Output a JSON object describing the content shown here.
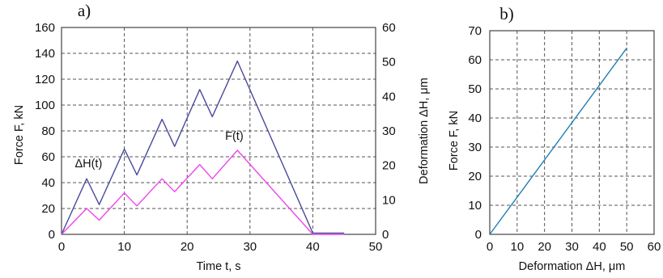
{
  "chart_data": [
    {
      "panel_label": "a)",
      "type": "line",
      "xlabel": "Time t, s",
      "ylabel_left": "Force F, kN",
      "ylabel_right": "Deformation ΔH, μm",
      "xlim": [
        0,
        50
      ],
      "ylim_left": [
        0,
        160
      ],
      "ylim_right": [
        0,
        60
      ],
      "x_ticks": [
        "0",
        "10",
        "20",
        "30",
        "40",
        "50"
      ],
      "y_ticks_left": [
        "0",
        "20",
        "40",
        "60",
        "80",
        "100",
        "120",
        "140",
        "160"
      ],
      "y_ticks_right": [
        "0",
        "10",
        "20",
        "30",
        "40",
        "50",
        "60"
      ],
      "grid": true,
      "series": [
        {
          "name": "ΔH(t)",
          "axis": "left",
          "color": "#4a4a9a",
          "x": [
            0,
            4,
            6,
            10,
            12,
            16,
            18,
            22,
            24,
            28,
            40,
            45
          ],
          "y": [
            0,
            43,
            23,
            66,
            46,
            89,
            68,
            112,
            91,
            134,
            1,
            1
          ]
        },
        {
          "name": "F(t)",
          "axis": "left",
          "color": "#ee44ee",
          "x": [
            0,
            4,
            6,
            10,
            12,
            16,
            18,
            22,
            24,
            28,
            40,
            45
          ],
          "y": [
            0,
            20,
            11,
            32,
            22,
            43,
            33,
            54,
            43,
            65,
            0,
            0
          ]
        }
      ],
      "annotations": [
        {
          "text": "ΔH(t)",
          "x": 4.3,
          "y": 52
        },
        {
          "text": "F(t)",
          "x": 27.5,
          "y": 73
        }
      ]
    },
    {
      "panel_label": "b)",
      "type": "line",
      "xlabel": "Deformation ΔH, μm",
      "ylabel": "Force F, kN",
      "xlim": [
        0,
        60
      ],
      "ylim": [
        0,
        70
      ],
      "x_ticks": [
        "0",
        "10",
        "20",
        "30",
        "40",
        "50",
        "60"
      ],
      "y_ticks": [
        "0",
        "10",
        "20",
        "30",
        "40",
        "50",
        "60",
        "70"
      ],
      "grid": true,
      "series": [
        {
          "color": "#1f7fb4",
          "x": [
            0,
            50
          ],
          "y": [
            0,
            64
          ]
        }
      ]
    }
  ]
}
